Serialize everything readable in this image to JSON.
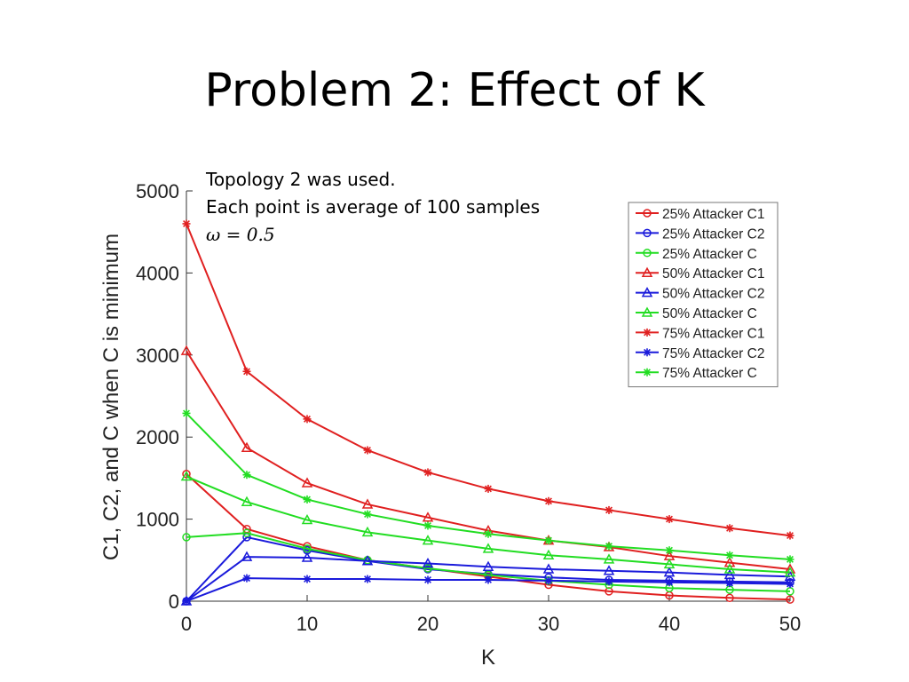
{
  "slide": {
    "title": "Problem 2: Effect of K",
    "notes": [
      "Topology 2 was used.",
      "Each point is average of 100 samples",
      "ω = 0.5"
    ]
  },
  "chart_data": {
    "type": "line",
    "title": "",
    "xlabel": "K",
    "ylabel": "C1, C2, and  C when C is minimum",
    "xlim": [
      0,
      50
    ],
    "ylim": [
      0,
      5000
    ],
    "xticks": [
      0,
      10,
      20,
      30,
      40,
      50
    ],
    "yticks": [
      0,
      1000,
      2000,
      3000,
      4000,
      5000
    ],
    "grid": false,
    "legend_position": "top-right",
    "x": [
      0,
      5,
      10,
      15,
      20,
      25,
      30,
      35,
      40,
      45,
      50
    ],
    "series": [
      {
        "name": "25% Attacker C1",
        "color": "#e02020",
        "marker": "circle",
        "values": [
          1550,
          880,
          670,
          500,
          400,
          300,
          200,
          120,
          70,
          40,
          20
        ]
      },
      {
        "name": "25% Attacker C2",
        "color": "#1a1adb",
        "marker": "circle",
        "values": [
          0,
          780,
          620,
          490,
          390,
          330,
          290,
          260,
          250,
          240,
          230
        ]
      },
      {
        "name": "25% Attacker C",
        "color": "#22dd22",
        "marker": "circle",
        "values": [
          780,
          830,
          640,
          500,
          400,
          320,
          250,
          200,
          160,
          140,
          120
        ]
      },
      {
        "name": "50% Attacker C1",
        "color": "#e02020",
        "marker": "triangle",
        "values": [
          3050,
          1870,
          1440,
          1180,
          1020,
          860,
          740,
          660,
          550,
          470,
          390
        ]
      },
      {
        "name": "50% Attacker C2",
        "color": "#1a1adb",
        "marker": "triangle",
        "values": [
          0,
          540,
          530,
          490,
          460,
          420,
          390,
          370,
          350,
          320,
          300
        ]
      },
      {
        "name": "50% Attacker C",
        "color": "#22dd22",
        "marker": "triangle",
        "values": [
          1520,
          1210,
          990,
          840,
          740,
          640,
          560,
          510,
          450,
          390,
          350
        ]
      },
      {
        "name": "75% Attacker C1",
        "color": "#e02020",
        "marker": "star",
        "values": [
          4600,
          2800,
          2220,
          1840,
          1570,
          1370,
          1220,
          1110,
          1000,
          890,
          800
        ]
      },
      {
        "name": "75% Attacker C2",
        "color": "#1a1adb",
        "marker": "star",
        "values": [
          0,
          280,
          270,
          270,
          260,
          260,
          250,
          240,
          230,
          220,
          210
        ]
      },
      {
        "name": "75% Attacker C",
        "color": "#22dd22",
        "marker": "star",
        "values": [
          2290,
          1540,
          1240,
          1060,
          920,
          820,
          740,
          670,
          620,
          560,
          510
        ]
      }
    ]
  }
}
